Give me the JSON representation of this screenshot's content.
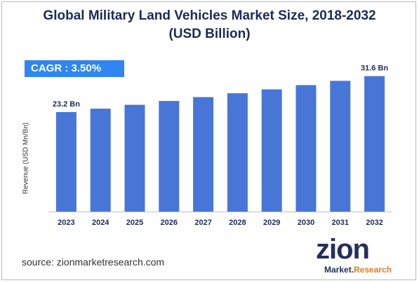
{
  "chart_data": {
    "type": "bar",
    "title_line1": "Global Military Land Vehicles Market Size, 2018-2032",
    "title_line2": "(USD Billion)",
    "ylabel": "Revenue (USD Mn/Bn)",
    "categories": [
      "2023",
      "2024",
      "2025",
      "2026",
      "2027",
      "2028",
      "2029",
      "2030",
      "2031",
      "2032"
    ],
    "values": [
      23.2,
      24.0,
      24.9,
      25.8,
      26.7,
      27.6,
      28.5,
      29.5,
      30.5,
      31.6
    ],
    "data_labels": {
      "first": "23.2 Bn",
      "last": "31.6 Bn"
    },
    "ylim": [
      0,
      33.5
    ],
    "grid": false,
    "bar_color": "#4876d6"
  },
  "annotation": {
    "cagr": "CAGR : 3.50%"
  },
  "footer": {
    "source": "source: zionmarketresearch.com"
  },
  "logo": {
    "text_main": "zion",
    "text_sub_1": "Market",
    "text_sub_2": "Research",
    "accent_color": "#e37a1e"
  }
}
